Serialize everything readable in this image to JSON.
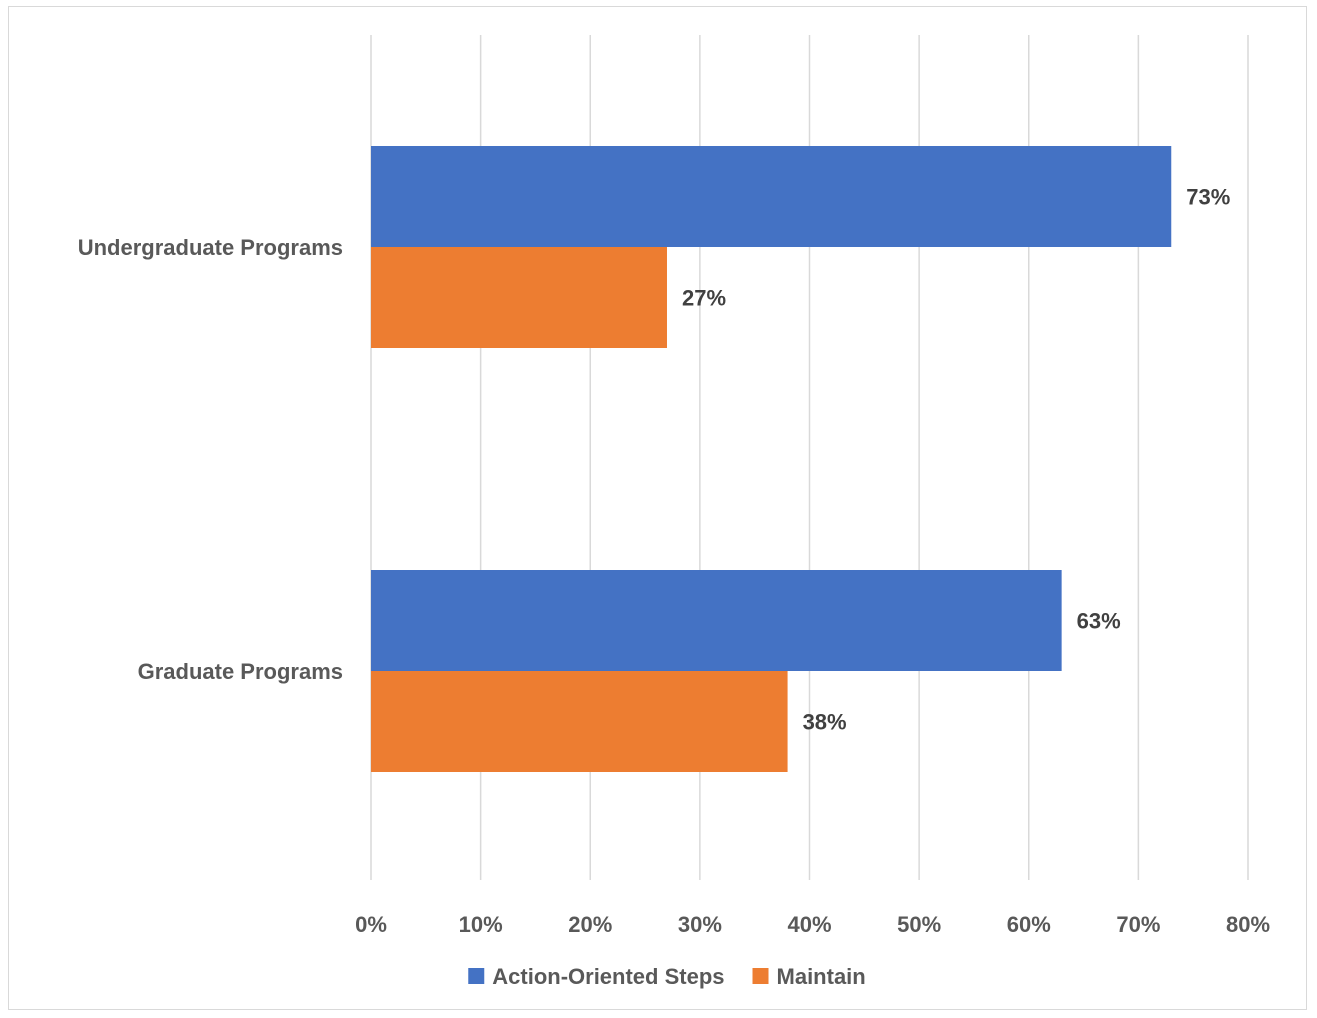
{
  "chart_data": {
    "type": "bar",
    "orientation": "horizontal",
    "categories": [
      "Undergraduate Programs",
      "Graduate Programs"
    ],
    "series": [
      {
        "name": "Action-Oriented Steps",
        "values": [
          0.73,
          0.63
        ],
        "labels": [
          "73%",
          "63%"
        ],
        "color": "#4472C4"
      },
      {
        "name": "Maintain",
        "values": [
          0.27,
          0.38
        ],
        "labels": [
          "27%",
          "38%"
        ],
        "color": "#ED7D31"
      }
    ],
    "xlim": [
      0,
      0.8
    ],
    "x_ticks": [
      0,
      0.1,
      0.2,
      0.3,
      0.4,
      0.5,
      0.6,
      0.7,
      0.8
    ],
    "x_tick_labels": [
      "0%",
      "10%",
      "20%",
      "30%",
      "40%",
      "50%",
      "60%",
      "70%",
      "80%"
    ],
    "grid": true,
    "gridline_color": "#d9d9d9",
    "legend_position": "bottom",
    "title": "",
    "xlabel": "",
    "ylabel": ""
  }
}
